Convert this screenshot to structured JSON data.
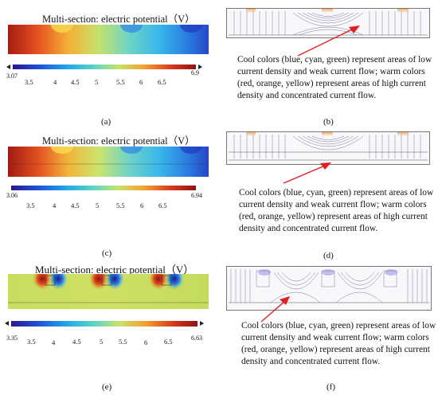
{
  "panels": [
    {
      "id": "a",
      "title": "Multi-section: electric potential（V）",
      "scale_min": "3.07",
      "scale_max": "6.9",
      "ticks": [
        "3.5",
        "4",
        "4.5",
        "5",
        "5.5",
        "6",
        "6.5"
      ],
      "caption": "(a)"
    },
    {
      "id": "c",
      "title": "Multi-section: electric potential（V）",
      "scale_min": "3.06",
      "scale_max": "6.94",
      "ticks": [
        "3.5",
        "4",
        "4.5",
        "5",
        "5.5",
        "6",
        "6.5"
      ],
      "caption": "(c)"
    },
    {
      "id": "e",
      "title": "Multi-section: electric potential（V）",
      "scale_min": "3.35",
      "scale_max": "6.63",
      "ticks": [
        "3.5",
        "4",
        "4.5",
        "5",
        "5.5",
        "6",
        "6.5"
      ],
      "caption": "(e)"
    }
  ],
  "current_panels": [
    {
      "id": "b",
      "caption": "(b)",
      "note": "Cool colors (blue, cyan, green) represent areas of low current density and weak current flow; warm colors (red, orange, yellow) represent areas of high current density and concentrated current flow."
    },
    {
      "id": "d",
      "caption": "(d)",
      "note": "Cool colors (blue, cyan, green) represent areas of low current density and weak current flow; warm colors (red, orange, yellow) represent areas of high current density and concentrated current flow."
    },
    {
      "id": "f",
      "caption": "(f)",
      "note": "Cool colors (blue, cyan, green) represent areas of low current density and weak current flow; warm colors (red, orange, yellow) represent areas of high current density and concentrated current flow."
    }
  ],
  "colors": {
    "colormap": [
      "#2a1a8c",
      "#1f4fd8",
      "#22a7e8",
      "#5fd6c2",
      "#c9e36a",
      "#f3a12f",
      "#d8361c",
      "#8e1414"
    ],
    "arrow": "#e02020"
  }
}
